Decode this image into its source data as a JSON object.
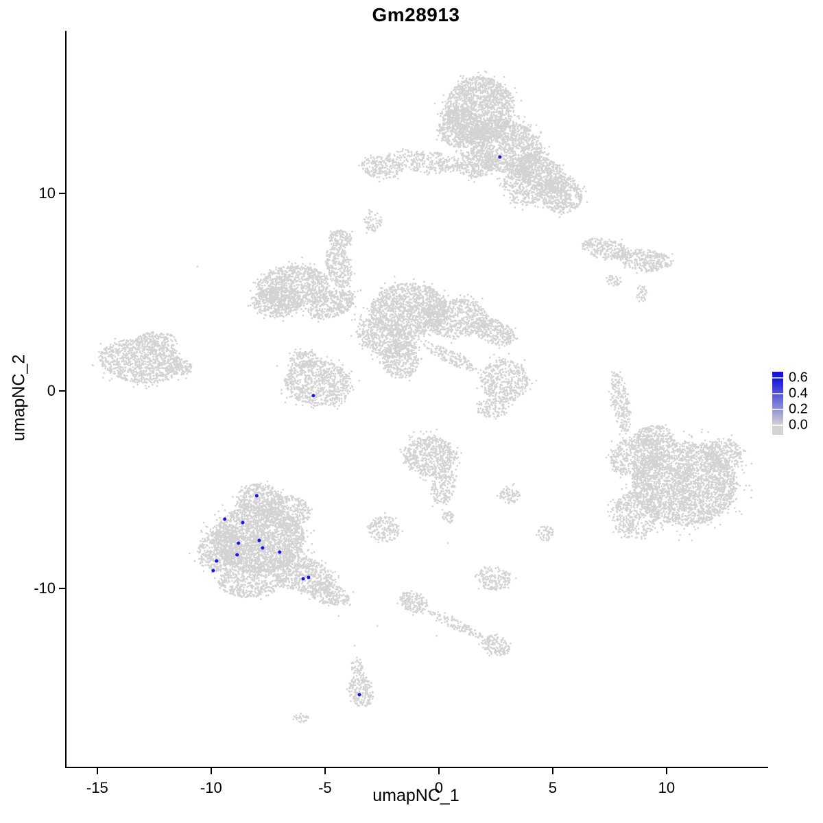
{
  "title": "Gm28913",
  "axes": {
    "x": {
      "label": "umapNC_1",
      "tick_labels": [
        "-15",
        "-10",
        "-5",
        "0",
        "5",
        "10"
      ],
      "tick_values": [
        -15,
        -10,
        -5,
        0,
        5,
        10
      ]
    },
    "y": {
      "label": "umapNC_2",
      "tick_labels": [
        "10",
        "0",
        "-10"
      ],
      "tick_values": [
        10,
        0,
        -10
      ]
    }
  },
  "legend": {
    "labels": [
      "0.6",
      "0.4",
      "0.2",
      "0.0"
    ],
    "high_color": "#1414dc",
    "low_color": "#d3d3d3"
  },
  "chart_data": {
    "type": "scatter",
    "title": "Gm28913",
    "xlabel": "umapNC_1",
    "ylabel": "umapNC_2",
    "xlim": [
      -16.35,
      14.46
    ],
    "ylim": [
      -19.03,
      18.23
    ],
    "grid": false,
    "legend_position": "right",
    "point_color_low": "#d3d3d3",
    "point_color_high": "#1414dc",
    "colorbar": {
      "min": 0.0,
      "max": 0.6,
      "ticks": [
        0.6,
        0.4,
        0.2,
        0.0
      ]
    },
    "clusters": [
      {
        "cx": 1.8,
        "cy": 14.3,
        "rx": 1.5,
        "ry": 1.6,
        "rot": 0,
        "n": 1500
      },
      {
        "cx": 2.9,
        "cy": 12.4,
        "rx": 1.7,
        "ry": 1.3,
        "rot": -20,
        "n": 1300
      },
      {
        "cx": 4.5,
        "cy": 11.0,
        "rx": 1.3,
        "ry": 0.8,
        "rot": -35,
        "n": 600
      },
      {
        "cx": 5.4,
        "cy": 9.9,
        "rx": 0.9,
        "ry": 0.9,
        "rot": 0,
        "n": 450
      },
      {
        "cx": 0.9,
        "cy": 13.3,
        "rx": 0.9,
        "ry": 1.0,
        "rot": 0,
        "n": 500
      },
      {
        "cx": -0.6,
        "cy": 11.6,
        "rx": 1.7,
        "ry": 0.55,
        "rot": -8,
        "n": 300
      },
      {
        "cx": -2.5,
        "cy": 11.3,
        "rx": 0.9,
        "ry": 0.55,
        "rot": -10,
        "n": 200
      },
      {
        "cx": 3.7,
        "cy": 10.3,
        "rx": 0.8,
        "ry": 1.0,
        "rot": 25,
        "n": 350
      },
      {
        "cx": 1.6,
        "cy": 11.5,
        "rx": 0.8,
        "ry": 0.7,
        "rot": 0,
        "n": 250
      },
      {
        "cx": -2.9,
        "cy": 8.6,
        "rx": 0.4,
        "ry": 0.5,
        "rot": 0,
        "n": 60
      },
      {
        "cx": 7.3,
        "cy": 7.2,
        "rx": 1.05,
        "ry": 0.5,
        "rot": -12,
        "n": 260
      },
      {
        "cx": 9.1,
        "cy": 6.6,
        "rx": 1.15,
        "ry": 0.55,
        "rot": -8,
        "n": 300
      },
      {
        "cx": 7.7,
        "cy": 5.6,
        "rx": 0.3,
        "ry": 0.3,
        "rot": 0,
        "n": 40
      },
      {
        "cx": 8.9,
        "cy": 4.9,
        "rx": 0.25,
        "ry": 0.45,
        "rot": 0,
        "n": 40
      },
      {
        "cx": -6.4,
        "cy": 5.3,
        "rx": 1.6,
        "ry": 1.05,
        "rot": 8,
        "n": 950
      },
      {
        "cx": -7.1,
        "cy": 4.5,
        "rx": 1.1,
        "ry": 0.75,
        "rot": 0,
        "n": 450
      },
      {
        "cx": -4.7,
        "cy": 4.4,
        "rx": 1.1,
        "ry": 0.65,
        "rot": 25,
        "n": 400
      },
      {
        "cx": -4.4,
        "cy": 6.3,
        "rx": 0.55,
        "ry": 1.1,
        "rot": 12,
        "n": 280
      },
      {
        "cx": -4.3,
        "cy": 7.7,
        "rx": 0.5,
        "ry": 0.45,
        "rot": 0,
        "n": 130
      },
      {
        "cx": -1.3,
        "cy": 4.1,
        "rx": 1.7,
        "ry": 1.35,
        "rot": 0,
        "n": 1250
      },
      {
        "cx": -2.3,
        "cy": 2.7,
        "rx": 1.4,
        "ry": 0.9,
        "rot": -25,
        "n": 600
      },
      {
        "cx": 0.7,
        "cy": 3.7,
        "rx": 1.4,
        "ry": 1.0,
        "rot": 0,
        "n": 650
      },
      {
        "cx": 2.4,
        "cy": 3.0,
        "rx": 1.0,
        "ry": 0.6,
        "rot": -25,
        "n": 300
      },
      {
        "cx": -1.7,
        "cy": 1.5,
        "rx": 0.8,
        "ry": 0.9,
        "rot": 0,
        "n": 280
      },
      {
        "cx": 0.5,
        "cy": 1.7,
        "rx": 1.3,
        "ry": 0.3,
        "rot": -30,
        "n": 160
      },
      {
        "cx": -13.1,
        "cy": 1.5,
        "rx": 1.8,
        "ry": 1.1,
        "rot": -8,
        "n": 950
      },
      {
        "cx": -12.4,
        "cy": 2.5,
        "rx": 0.9,
        "ry": 0.5,
        "rot": 0,
        "n": 180
      },
      {
        "cx": -11.4,
        "cy": 1.2,
        "rx": 0.55,
        "ry": 0.4,
        "rot": 0,
        "n": 120
      },
      {
        "cx": -5.3,
        "cy": 0.4,
        "rx": 1.5,
        "ry": 1.15,
        "rot": -12,
        "n": 800
      },
      {
        "cx": -5.9,
        "cy": 1.6,
        "rx": 0.6,
        "ry": 0.45,
        "rot": 0,
        "n": 120
      },
      {
        "cx": 2.9,
        "cy": 0.5,
        "rx": 1.05,
        "ry": 1.1,
        "rot": 0,
        "n": 480
      },
      {
        "cx": 2.3,
        "cy": -0.9,
        "rx": 0.65,
        "ry": 0.45,
        "rot": 0,
        "n": 110
      },
      {
        "cx": 8.0,
        "cy": -0.6,
        "rx": 0.38,
        "ry": 1.6,
        "rot": 8,
        "n": 230
      },
      {
        "cx": 10.8,
        "cy": -4.7,
        "rx": 2.3,
        "ry": 2.1,
        "rot": 0,
        "n": 2800
      },
      {
        "cx": 8.7,
        "cy": -3.3,
        "rx": 1.2,
        "ry": 1.0,
        "rot": 25,
        "n": 500
      },
      {
        "cx": 8.6,
        "cy": -6.3,
        "rx": 1.0,
        "ry": 1.2,
        "rot": 0,
        "n": 420
      },
      {
        "cx": 9.5,
        "cy": -2.3,
        "rx": 0.8,
        "ry": 0.55,
        "rot": 0,
        "n": 220
      },
      {
        "cx": 12.5,
        "cy": -3.2,
        "rx": 0.8,
        "ry": 0.8,
        "rot": 0,
        "n": 260
      },
      {
        "cx": -0.4,
        "cy": -3.3,
        "rx": 1.15,
        "ry": 1.0,
        "rot": -10,
        "n": 600
      },
      {
        "cx": 0.2,
        "cy": -4.9,
        "rx": 0.5,
        "ry": 0.85,
        "rot": -15,
        "n": 170
      },
      {
        "cx": 0.4,
        "cy": -6.4,
        "rx": 0.25,
        "ry": 0.3,
        "rot": 0,
        "n": 40
      },
      {
        "cx": 3.1,
        "cy": -5.3,
        "rx": 0.45,
        "ry": 0.4,
        "rot": 0,
        "n": 80
      },
      {
        "cx": 4.7,
        "cy": -7.2,
        "rx": 0.35,
        "ry": 0.4,
        "rot": 0,
        "n": 55
      },
      {
        "cx": -7.9,
        "cy": -7.5,
        "rx": 2.0,
        "ry": 1.7,
        "rot": 0,
        "n": 2400
      },
      {
        "cx": -7.9,
        "cy": -5.5,
        "rx": 1.0,
        "ry": 0.8,
        "rot": 0,
        "n": 400
      },
      {
        "cx": -9.6,
        "cy": -8.1,
        "rx": 1.0,
        "ry": 1.05,
        "rot": 0,
        "n": 480
      },
      {
        "cx": -8.3,
        "cy": -9.7,
        "rx": 1.4,
        "ry": 0.8,
        "rot": 0,
        "n": 450
      },
      {
        "cx": -6.0,
        "cy": -9.3,
        "rx": 1.4,
        "ry": 0.85,
        "rot": -20,
        "n": 600
      },
      {
        "cx": -4.8,
        "cy": -10.3,
        "rx": 0.9,
        "ry": 0.55,
        "rot": -20,
        "n": 260
      },
      {
        "cx": -6.6,
        "cy": -6.1,
        "rx": 0.9,
        "ry": 0.8,
        "rot": 0,
        "n": 300
      },
      {
        "cx": -2.4,
        "cy": -7.0,
        "rx": 0.7,
        "ry": 0.65,
        "rot": 0,
        "n": 170
      },
      {
        "cx": 2.4,
        "cy": -9.5,
        "rx": 0.75,
        "ry": 0.6,
        "rot": -10,
        "n": 180
      },
      {
        "cx": -1.1,
        "cy": -10.7,
        "rx": 0.65,
        "ry": 0.5,
        "rot": -30,
        "n": 150
      },
      {
        "cx": 0.7,
        "cy": -11.8,
        "rx": 1.4,
        "ry": 0.25,
        "rot": -28,
        "n": 130
      },
      {
        "cx": 2.5,
        "cy": -12.9,
        "rx": 0.65,
        "ry": 0.5,
        "rot": -30,
        "n": 150
      },
      {
        "cx": -3.4,
        "cy": -15.2,
        "rx": 0.55,
        "ry": 0.85,
        "rot": 8,
        "n": 200
      },
      {
        "cx": -3.6,
        "cy": -14.0,
        "rx": 0.25,
        "ry": 0.4,
        "rot": 0,
        "n": 40
      },
      {
        "cx": -6.1,
        "cy": -16.6,
        "rx": 0.4,
        "ry": 0.2,
        "rot": 0,
        "n": 30
      }
    ],
    "extra_points": [
      [
        -10.6,
        6.3
      ],
      [
        -3.7,
        -12.9
      ],
      [
        -3.6,
        -13.5
      ],
      [
        -2.7,
        -11.9
      ],
      [
        -4.4,
        -11.4
      ],
      [
        3.3,
        -4.7
      ],
      [
        0.4,
        -7.7
      ],
      [
        -0.1,
        -12.4
      ]
    ],
    "highlight_points": [
      [
        2.68,
        11.84
      ],
      [
        -5.51,
        -0.24
      ],
      [
        -8.0,
        -5.31
      ],
      [
        -9.4,
        -6.49
      ],
      [
        -8.61,
        -6.67
      ],
      [
        -7.89,
        -7.57
      ],
      [
        -7.74,
        -7.95
      ],
      [
        -8.8,
        -7.71
      ],
      [
        -8.86,
        -8.3
      ],
      [
        -9.76,
        -8.61
      ],
      [
        -9.91,
        -9.1
      ],
      [
        -6.99,
        -8.16
      ],
      [
        -5.96,
        -9.51
      ],
      [
        -5.72,
        -9.44
      ],
      [
        -3.49,
        -15.38
      ]
    ]
  }
}
